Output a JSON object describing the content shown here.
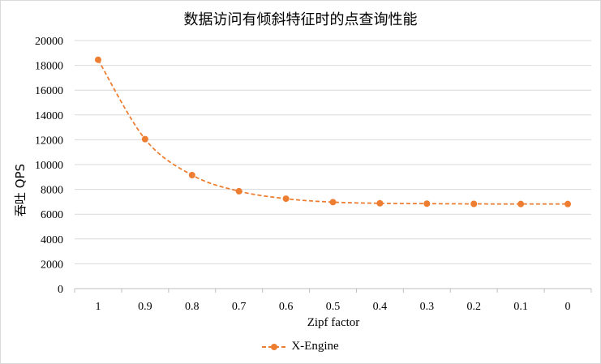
{
  "chart_data": {
    "type": "line",
    "title": "数据访问有倾斜特征时的点查询性能",
    "xlabel": "Zipf factor",
    "ylabel": "吞吐 QPS",
    "categories": [
      "1",
      "0.9",
      "0.8",
      "0.7",
      "0.6",
      "0.5",
      "0.4",
      "0.3",
      "0.2",
      "0.1",
      "0"
    ],
    "series": [
      {
        "name": "X-Engine",
        "values": [
          18450,
          12050,
          9150,
          7850,
          7250,
          6970,
          6880,
          6850,
          6830,
          6820,
          6820
        ]
      }
    ],
    "ylim": [
      0,
      20000
    ],
    "yticks": [
      "0",
      "2000",
      "4000",
      "6000",
      "8000",
      "10000",
      "12000",
      "14000",
      "16000",
      "18000",
      "20000"
    ],
    "grid": "horizontal",
    "legend": "bottom",
    "colors": {
      "series": "#ED7D31",
      "grid": "#d9d9d9",
      "axis": "#bfbfbf"
    }
  }
}
